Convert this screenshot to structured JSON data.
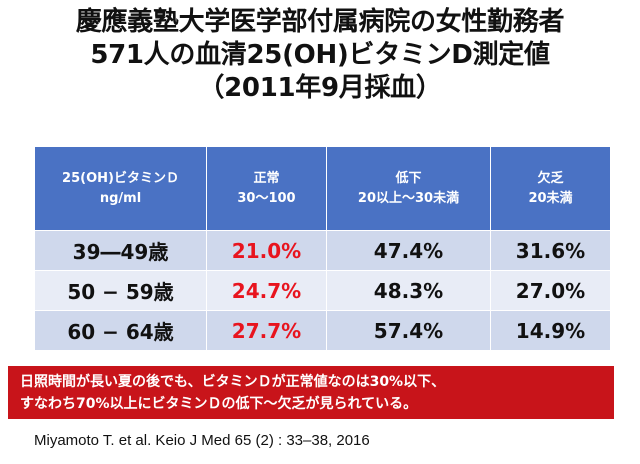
{
  "title": {
    "line1": "慶應義塾大学医学部付属病院の女性勤務者",
    "line2": "571人の血清25(OH)ビタミンD測定値",
    "line3": "（2011年9月採血）"
  },
  "table": {
    "headers": [
      {
        "line1": "25(OH)ビタミンＤ",
        "line2": "ng/ml"
      },
      {
        "line1": "正常",
        "line2": "30〜100"
      },
      {
        "line1": "低下",
        "line2": "20以上〜30未満"
      },
      {
        "line1": "欠乏",
        "line2": "20未満"
      }
    ],
    "rows": [
      {
        "age": "39―49歳",
        "normal": "21.0%",
        "low": "47.4%",
        "deficient": "31.6%"
      },
      {
        "age": "50 − 59歳",
        "normal": "24.7%",
        "low": "48.3%",
        "deficient": "27.0%"
      },
      {
        "age": "60 − 64歳",
        "normal": "27.7%",
        "low": "57.4%",
        "deficient": "14.9%"
      }
    ]
  },
  "note": {
    "line1": "日照時間が長い夏の後でも、ビタミンＤが正常値なのは30%以下、",
    "line2": "すなわち70%以上にビタミンＤの低下〜欠乏が見られている。"
  },
  "citation": "Miyamoto T. et al. Keio J Med 65 (2) : 33–38, 2016",
  "colors": {
    "header_bg": "#4a72c4",
    "row_dark": "#cfd8ec",
    "row_light": "#e8ecf6",
    "highlight_text": "#e8141e",
    "note_bg": "#c8141a"
  }
}
